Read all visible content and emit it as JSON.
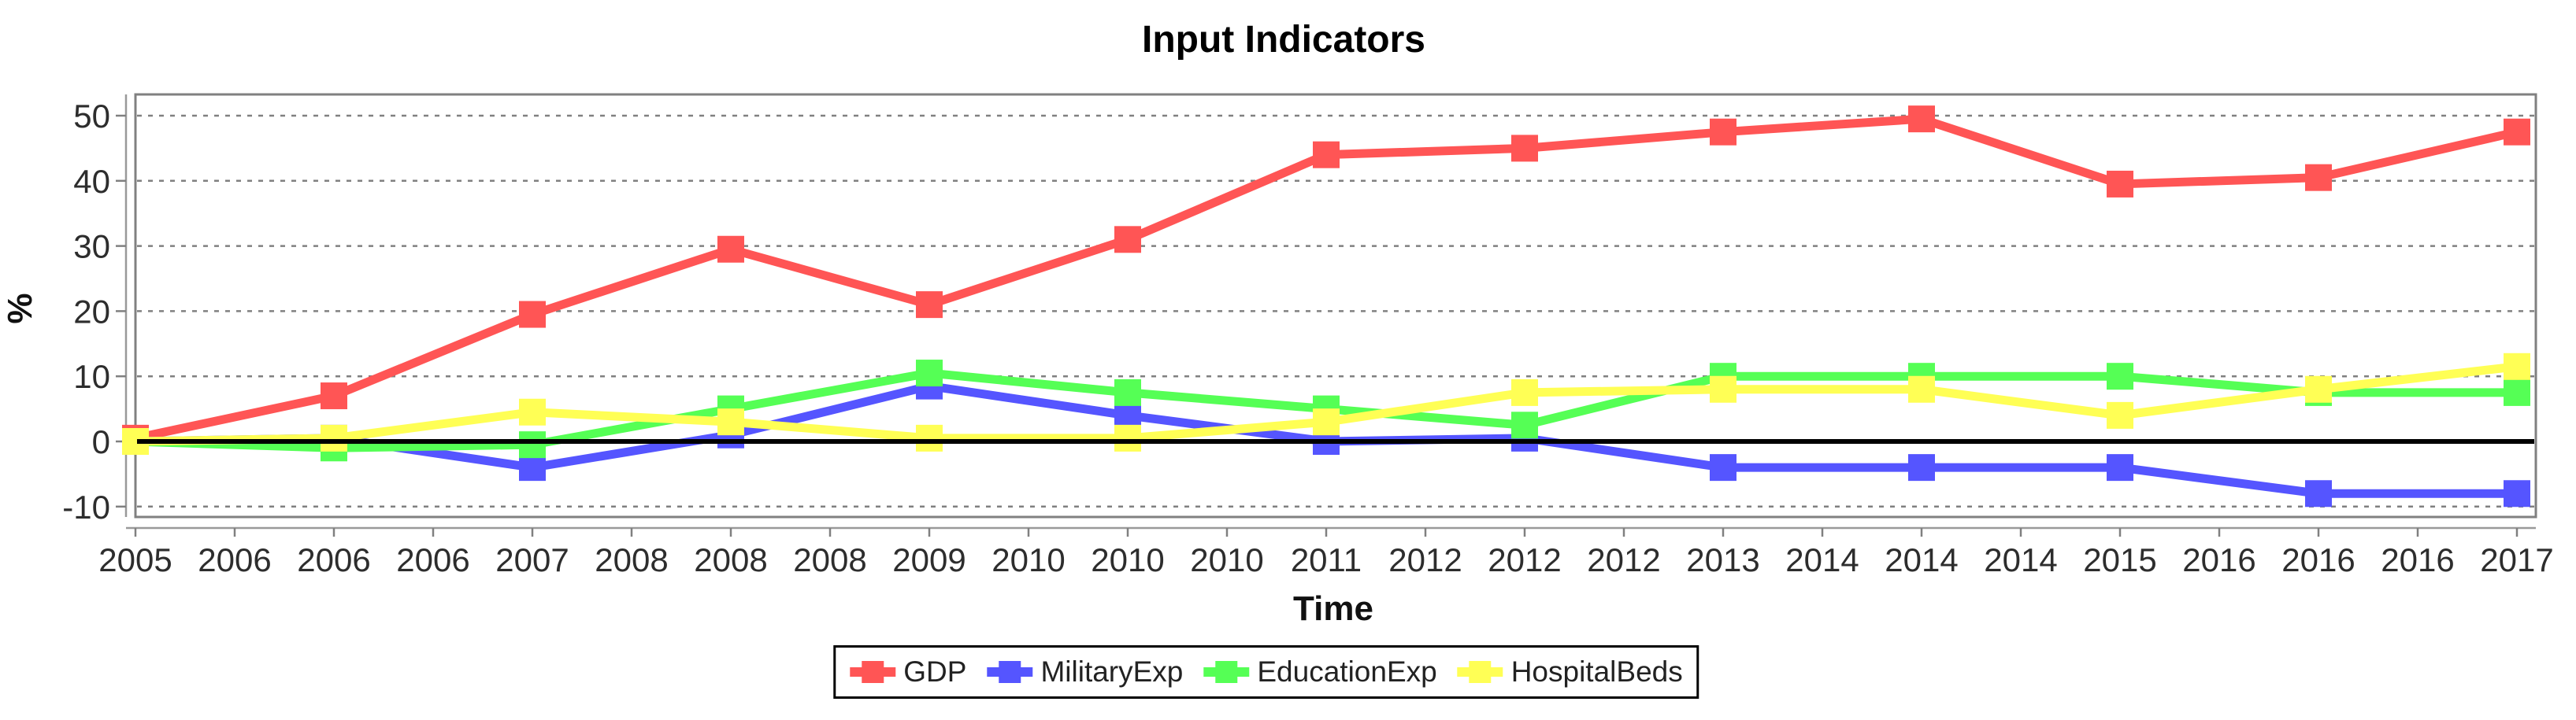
{
  "title": "Input Indicators",
  "y_axis_label": "%",
  "x_axis_label": "Time",
  "chart_data": {
    "type": "line",
    "title": "Input Indicators",
    "xlabel": "Time",
    "ylabel": "%",
    "ylim": [
      -11.5,
      53
    ],
    "grid": "horizontal dashed gray lines at each y tick, solid black line at 0",
    "legend_position": "bottom-center",
    "y_ticks": [
      50,
      40,
      30,
      20,
      10,
      0,
      -10
    ],
    "x_tick_labels": [
      "2005",
      "2006",
      "2006",
      "2006",
      "2007",
      "2008",
      "2008",
      "2008",
      "2009",
      "2010",
      "2010",
      "2010",
      "2011",
      "2012",
      "2012",
      "2012",
      "2013",
      "2014",
      "2014",
      "2014",
      "2015",
      "2016",
      "2016",
      "2016",
      "2017"
    ],
    "x": [
      2005,
      2006,
      2007,
      2008,
      2009,
      2010,
      2011,
      2012,
      2013,
      2014,
      2015,
      2016,
      2017
    ],
    "series": [
      {
        "name": "GDP",
        "color": "#FF5555",
        "values": [
          0.5,
          7,
          19.5,
          29.5,
          21,
          31,
          44,
          45,
          47.5,
          49.5,
          39.5,
          40.5,
          47.5
        ]
      },
      {
        "name": "MilitaryExp",
        "color": "#5555FF",
        "values": [
          0,
          0.5,
          -4,
          1,
          8.5,
          4,
          0,
          0.5,
          -4,
          -4,
          -4,
          -8,
          -8
        ]
      },
      {
        "name": "EducationExp",
        "color": "#55FF55",
        "values": [
          0,
          -1,
          -0.5,
          5,
          10.5,
          7.5,
          5,
          2.5,
          10,
          10,
          10,
          7.5,
          7.5
        ]
      },
      {
        "name": "HospitalBeds",
        "color": "#FFFF55",
        "values": [
          0,
          0.5,
          4.5,
          3,
          0.5,
          0.5,
          3,
          7.5,
          8,
          8,
          4,
          8,
          11.5
        ]
      }
    ]
  },
  "colors": {
    "background": "#FFFFFF",
    "plot_border": "#808080",
    "grid_line": "#808080",
    "zero_line": "#000000",
    "axis_line": "#999999",
    "tick_label": "#2D2D2D",
    "legend_border": "#000000"
  }
}
